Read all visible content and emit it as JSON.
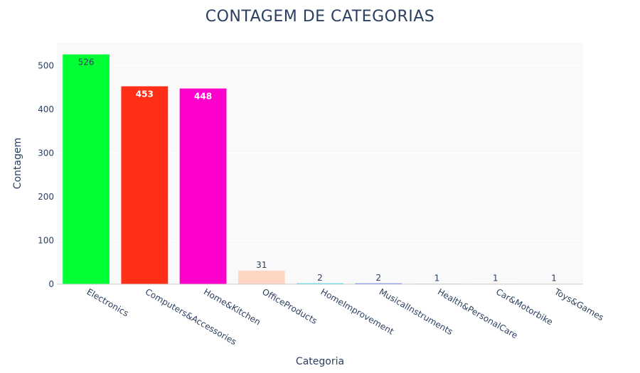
{
  "chart_data": {
    "type": "bar",
    "title": "CONTAGEM DE CATEGORIAS",
    "xlabel": "Categoria",
    "ylabel": "Contagem",
    "categories": [
      "Electronics",
      "Computers&Accessories",
      "Home&Kitchen",
      "OfficeProducts",
      "HomeImprovement",
      "MusicalInstruments",
      "Health&PersonalCare",
      "Car&Motorbike",
      "Toys&Games"
    ],
    "values": [
      526,
      453,
      448,
      31,
      2,
      2,
      1,
      1,
      1
    ],
    "labels": [
      "526",
      "453",
      "448",
      "31",
      "2",
      "2",
      "1",
      "1",
      "1"
    ],
    "colors": [
      "#00ff33",
      "#ff2e16",
      "#ff00cc",
      "#ffd6c4",
      "#33ddee",
      "#6677ee",
      "#88bb99",
      "#ffbb88",
      "#eeeebb"
    ],
    "label_colors": [
      "#2a3f5f",
      "#ffffff",
      "#ffffff",
      "#2a3f5f",
      "#2a3f5f",
      "#2a3f5f",
      "#2a3f5f",
      "#2a3f5f",
      "#2a3f5f"
    ],
    "ylim": [
      0,
      553
    ],
    "yticks": [
      0,
      100,
      200,
      300,
      400,
      500
    ],
    "grid": true,
    "legend": "none"
  }
}
